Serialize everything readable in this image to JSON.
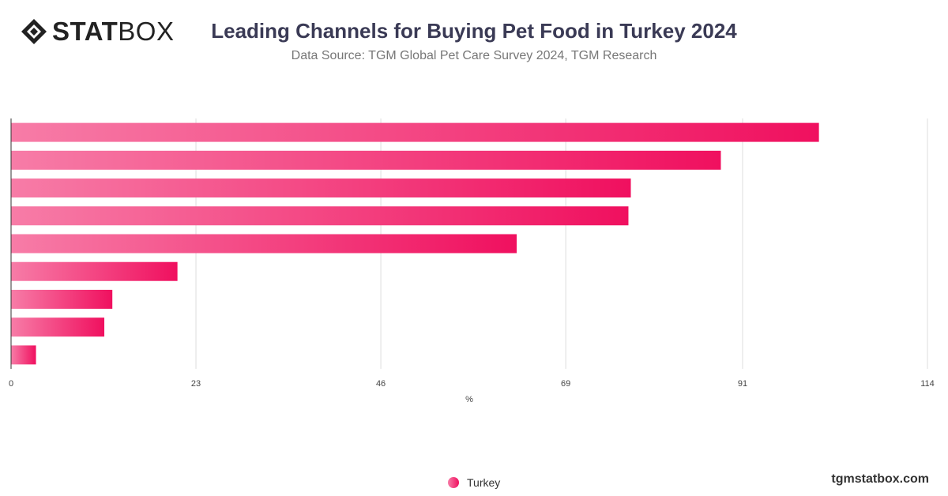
{
  "header": {
    "logo_bold": "STAT",
    "logo_light": "BOX",
    "title": "Leading Channels for Buying Pet Food in Turkey 2024",
    "subtitle": "Data Source: TGM Global Pet Care Survey 2024, TGM Research"
  },
  "footer": {
    "site": "tgmstatbox.com"
  },
  "colors": {
    "bar_light": "#f77ca7",
    "bar_dark": "#f0105f",
    "grid": "#dddddd",
    "axis": "#333333"
  },
  "chart_data": {
    "type": "bar",
    "orientation": "horizontal",
    "categories": [
      "",
      "",
      "",
      "",
      "",
      "",
      "",
      "",
      ""
    ],
    "series": [
      {
        "name": "Turkey",
        "values": [
          100.5,
          88.3,
          77.1,
          76.8,
          62.9,
          20.7,
          12.6,
          11.6,
          3.1
        ]
      }
    ],
    "x_ticks": [
      "0",
      "23",
      "46",
      "69",
      "91",
      "114"
    ],
    "xlim": [
      0,
      114
    ],
    "xlabel": "%",
    "grid": true,
    "legend": "bottom-center"
  }
}
